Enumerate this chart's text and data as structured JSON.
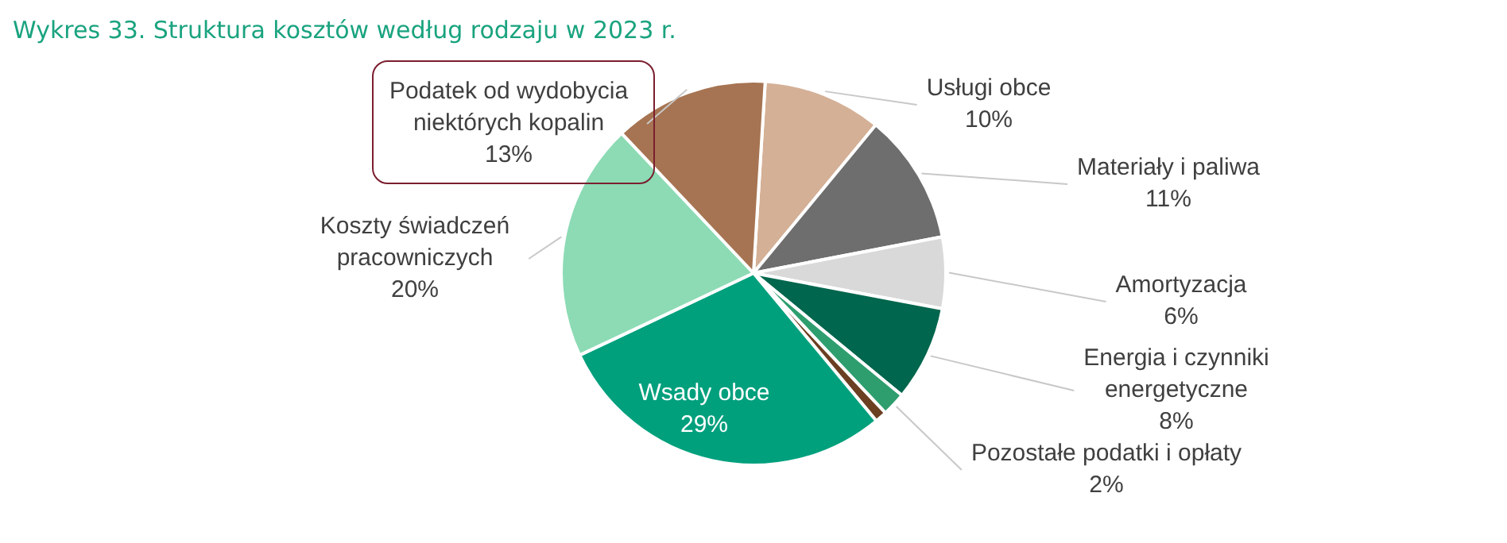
{
  "chart_data": {
    "type": "pie",
    "title": "Wykres 33. Struktura kosztów według rodzaju w 2023 r.",
    "categories": [
      "Usługi obce",
      "Materiały i paliwa",
      "Amortyzacja",
      "Energia i czynniki energetyczne",
      "Pozostałe podatki i opłaty",
      null,
      "Wsady obce",
      "Koszty świadczeń pracowniczych",
      "Podatek od wydobycia niektórych kopalin"
    ],
    "values": [
      10,
      11,
      6,
      8,
      2,
      1,
      29,
      20,
      13
    ],
    "colors": [
      "#d4b096",
      "#6e6e6e",
      "#d9d9d9",
      "#00664d",
      "#2e9e6e",
      "#6b3f22",
      "#00a07d",
      "#8cdbb5",
      "#a67452"
    ],
    "value_labels": [
      "10%",
      "11%",
      "6%",
      "8%",
      "2%",
      null,
      "29%",
      "20%",
      "13%"
    ],
    "legend": false
  }
}
